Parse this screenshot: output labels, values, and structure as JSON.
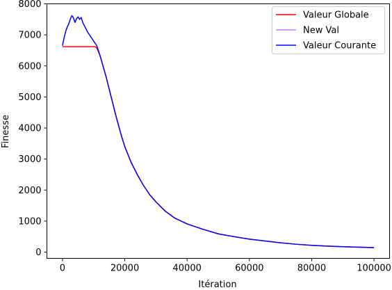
{
  "chart_data": {
    "type": "line",
    "title": "",
    "xlabel": "Itération",
    "ylabel": "Finesse",
    "xlim": [
      -5000,
      105000
    ],
    "ylim": [
      -200,
      8000
    ],
    "xticks": [
      0,
      20000,
      40000,
      60000,
      80000,
      100000
    ],
    "xtick_labels": [
      "0",
      "20000",
      "40000",
      "60000",
      "80000",
      "100000"
    ],
    "yticks": [
      0,
      1000,
      2000,
      3000,
      4000,
      5000,
      6000,
      7000,
      8000
    ],
    "ytick_labels": [
      "0",
      "1000",
      "2000",
      "3000",
      "4000",
      "5000",
      "6000",
      "7000",
      "8000"
    ],
    "grid": false,
    "legend_position": "top-right",
    "series": [
      {
        "name": "Valeur Globale",
        "color": "#ff0000",
        "x": [
          0,
          1500,
          3000,
          5000,
          7000,
          9000,
          10500,
          11000,
          12000,
          13000,
          14000,
          15000,
          16000,
          17000,
          18000,
          19000,
          20000,
          22000,
          24000,
          26000,
          28000,
          30000,
          33000,
          36000,
          40000,
          45000,
          50000,
          55000,
          60000,
          65000,
          70000,
          75000,
          80000,
          85000,
          90000,
          95000,
          100000
        ],
        "y": [
          6620,
          6620,
          6620,
          6620,
          6620,
          6620,
          6620,
          6580,
          6350,
          6000,
          5650,
          5250,
          4850,
          4450,
          4080,
          3720,
          3400,
          2900,
          2500,
          2150,
          1850,
          1620,
          1320,
          1100,
          910,
          740,
          590,
          500,
          420,
          360,
          300,
          255,
          220,
          195,
          175,
          160,
          145
        ]
      },
      {
        "name": "New Val",
        "color": "#bf80ff",
        "x": [
          0,
          100000
        ],
        "y": [
          6620,
          145
        ]
      },
      {
        "name": "Valeur Courante",
        "color": "#0000ff",
        "x": [
          0,
          500,
          1000,
          1500,
          2000,
          2500,
          3000,
          3500,
          4000,
          4500,
          5000,
          5500,
          6000,
          6500,
          7000,
          7500,
          8000,
          9000,
          10000,
          11000,
          12000,
          13000,
          14000,
          15000,
          16000,
          17000,
          18000,
          19000,
          20000,
          22000,
          24000,
          26000,
          28000,
          30000,
          33000,
          36000,
          40000,
          45000,
          50000,
          55000,
          60000,
          65000,
          70000,
          75000,
          80000,
          85000,
          90000,
          95000,
          100000
        ],
        "y": [
          6650,
          6900,
          7100,
          7250,
          7350,
          7500,
          7620,
          7550,
          7400,
          7520,
          7580,
          7500,
          7560,
          7400,
          7300,
          7200,
          7100,
          6950,
          6800,
          6650,
          6350,
          6000,
          5650,
          5250,
          4850,
          4450,
          4080,
          3720,
          3400,
          2900,
          2500,
          2150,
          1850,
          1620,
          1320,
          1100,
          910,
          740,
          590,
          500,
          420,
          360,
          300,
          255,
          220,
          195,
          175,
          160,
          145
        ]
      }
    ]
  }
}
